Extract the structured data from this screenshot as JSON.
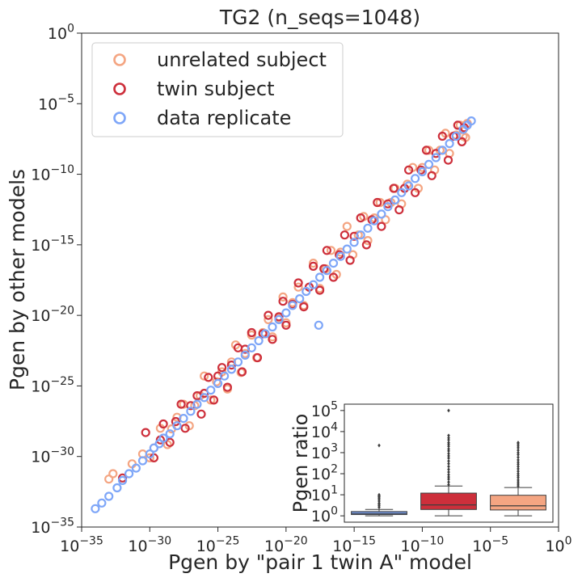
{
  "chart_data": [
    {
      "type": "scatter",
      "title": "TG2 (n_seqs=1048)",
      "xlabel": "Pgen by \"pair 1 twin A\" model",
      "ylabel": "Pgen by other models",
      "x_scale": "log",
      "y_scale": "log",
      "xlim": [
        1e-35,
        1
      ],
      "ylim": [
        1e-35,
        1
      ],
      "x_ticks": [
        {
          "value": 1e-35,
          "base": "10",
          "exp": "−35"
        },
        {
          "value": 1e-30,
          "base": "10",
          "exp": "−30"
        },
        {
          "value": 1e-25,
          "base": "10",
          "exp": "−25"
        },
        {
          "value": 1e-20,
          "base": "10",
          "exp": "−20"
        },
        {
          "value": 1e-15,
          "base": "10",
          "exp": "−15"
        },
        {
          "value": 1e-10,
          "base": "10",
          "exp": "−10"
        },
        {
          "value": 1e-05,
          "base": "10",
          "exp": "−5"
        },
        {
          "value": 1,
          "base": "10",
          "exp": "0"
        }
      ],
      "y_ticks": [
        {
          "value": 1e-35,
          "base": "10",
          "exp": "−35"
        },
        {
          "value": 1e-30,
          "base": "10",
          "exp": "−30"
        },
        {
          "value": 1e-25,
          "base": "10",
          "exp": "−25"
        },
        {
          "value": 1e-20,
          "base": "10",
          "exp": "−20"
        },
        {
          "value": 1e-15,
          "base": "10",
          "exp": "−15"
        },
        {
          "value": 1e-10,
          "base": "10",
          "exp": "−10"
        },
        {
          "value": 1e-05,
          "base": "10",
          "exp": "−5"
        },
        {
          "value": 1,
          "base": "10",
          "exp": "0"
        }
      ],
      "legend_position": "top-left",
      "marker": "hollow-circle",
      "series": [
        {
          "name": "unrelated subject",
          "color": "#f4a582",
          "points": [
            [
              1e-33,
              2.5e-32
            ],
            [
              2e-33,
              6e-32
            ],
            [
              5e-32,
              3e-31
            ],
            [
              3e-31,
              1.5e-30
            ],
            [
              1e-30,
              8e-31
            ],
            [
              2e-30,
              4e-30
            ],
            [
              6e-30,
              1e-28
            ],
            [
              2e-29,
              7e-30
            ],
            [
              4e-29,
              9e-29
            ],
            [
              1e-28,
              6e-28
            ],
            [
              3e-28,
              5e-27
            ],
            [
              8e-28,
              1.5e-28
            ],
            [
              2e-27,
              4e-27
            ],
            [
              5e-27,
              2e-26
            ],
            [
              1e-26,
              5e-25
            ],
            [
              3e-26,
              1e-26
            ],
            [
              8e-26,
              2e-25
            ],
            [
              2e-25,
              1e-24
            ],
            [
              5e-25,
              6e-26
            ],
            [
              1e-24,
              5e-24
            ],
            [
              2e-24,
              8e-23
            ],
            [
              5e-24,
              9e-25
            ],
            [
              1e-23,
              2e-23
            ],
            [
              3e-23,
              4e-22
            ],
            [
              7e-23,
              1e-23
            ],
            [
              2e-22,
              6e-22
            ],
            [
              5e-22,
              5e-21
            ],
            [
              1e-21,
              3e-22
            ],
            [
              3e-21,
              6e-21
            ],
            [
              6e-21,
              2e-19
            ],
            [
              1e-20,
              3e-21
            ],
            [
              3e-20,
              8e-20
            ],
            [
              8e-20,
              1e-18
            ],
            [
              2e-19,
              5e-20
            ],
            [
              5e-19,
              1e-18
            ],
            [
              1e-18,
              5e-17
            ],
            [
              3e-18,
              8e-19
            ],
            [
              8e-18,
              2e-17
            ],
            [
              2e-17,
              4e-16
            ],
            [
              5e-17,
              8e-18
            ],
            [
              1e-16,
              3e-16
            ],
            [
              3e-16,
              2e-14
            ],
            [
              8e-16,
              2e-16
            ],
            [
              2e-15,
              5e-15
            ],
            [
              5e-15,
              1e-13
            ],
            [
              1e-14,
              2e-15
            ],
            [
              3e-14,
              8e-14
            ],
            [
              8e-14,
              1e-12
            ],
            [
              2e-13,
              6e-14
            ],
            [
              5e-13,
              1e-12
            ],
            [
              1e-12,
              1e-11
            ],
            [
              3e-12,
              8e-13
            ],
            [
              8e-12,
              2e-11
            ],
            [
              2e-11,
              3e-10
            ],
            [
              5e-11,
              1e-11
            ],
            [
              1e-10,
              3e-10
            ],
            [
              3e-10,
              5e-09
            ],
            [
              8e-10,
              2e-10
            ],
            [
              2e-09,
              5e-09
            ],
            [
              5e-09,
              8e-08
            ],
            [
              1e-08,
              3e-09
            ],
            [
              3e-08,
              6e-08
            ],
            [
              6e-08,
              3e-07
            ],
            [
              1e-07,
              5e-08
            ],
            [
              2e-07,
              4e-07
            ],
            [
              1.5e-07,
              4e-08
            ]
          ]
        },
        {
          "name": "twin subject",
          "color": "#cd2f3b",
          "points": [
            [
              1e-32,
              3e-32
            ],
            [
              5e-31,
              5e-29
            ],
            [
              2e-30,
              8e-31
            ],
            [
              6e-30,
              1.5e-29
            ],
            [
              1e-29,
              2e-28
            ],
            [
              3e-29,
              1e-29
            ],
            [
              8e-29,
              3e-28
            ],
            [
              2e-28,
              5e-27
            ],
            [
              4e-28,
              1e-28
            ],
            [
              1e-27,
              4e-27
            ],
            [
              3e-27,
              2e-26
            ],
            [
              6e-27,
              1e-27
            ],
            [
              1e-26,
              3e-26
            ],
            [
              2e-26,
              4e-25
            ],
            [
              5e-26,
              1e-26
            ],
            [
              1e-25,
              5e-25
            ],
            [
              2e-25,
              2e-24
            ],
            [
              5e-25,
              8e-26
            ],
            [
              1e-24,
              3e-24
            ],
            [
              3e-24,
              5e-23
            ],
            [
              6e-24,
              1e-24
            ],
            [
              1e-23,
              4e-23
            ],
            [
              3e-23,
              6e-22
            ],
            [
              8e-23,
              1e-23
            ],
            [
              2e-22,
              5e-22
            ],
            [
              5e-22,
              1e-20
            ],
            [
              1e-21,
              2e-22
            ],
            [
              3e-21,
              8e-21
            ],
            [
              6e-21,
              1e-19
            ],
            [
              1e-20,
              2e-21
            ],
            [
              3e-20,
              6e-20
            ],
            [
              8e-20,
              2e-18
            ],
            [
              2e-19,
              4e-20
            ],
            [
              5e-19,
              1e-18
            ],
            [
              1e-18,
              3e-17
            ],
            [
              3e-18,
              6e-19
            ],
            [
              6e-18,
              2e-17
            ],
            [
              1e-17,
              4e-16
            ],
            [
              3e-17,
              5e-18
            ],
            [
              8e-17,
              2e-16
            ],
            [
              2e-16,
              5e-15
            ],
            [
              5e-16,
              8e-17
            ],
            [
              1e-15,
              4e-15
            ],
            [
              3e-15,
              8e-14
            ],
            [
              8e-15,
              1e-15
            ],
            [
              2e-14,
              6e-14
            ],
            [
              5e-14,
              1e-12
            ],
            [
              1e-13,
              2e-14
            ],
            [
              3e-13,
              8e-13
            ],
            [
              8e-13,
              1e-11
            ],
            [
              2e-12,
              3e-13
            ],
            [
              5e-12,
              1e-11
            ],
            [
              1e-11,
              2e-10
            ],
            [
              3e-11,
              5e-12
            ],
            [
              8e-11,
              2e-10
            ],
            [
              2e-10,
              5e-09
            ],
            [
              5e-10,
              8e-11
            ],
            [
              1e-09,
              3e-09
            ],
            [
              3e-09,
              5e-08
            ],
            [
              8e-09,
              1e-09
            ],
            [
              2e-08,
              5e-08
            ],
            [
              4e-08,
              3e-07
            ],
            [
              8e-08,
              2e-08
            ],
            [
              1.2e-07,
              2e-07
            ]
          ]
        },
        {
          "name": "data replicate",
          "color": "#7ea6f8",
          "points": [
            [
              1e-34,
              2e-34
            ],
            [
              3e-34,
              5e-34
            ],
            [
              1e-33,
              1.5e-33
            ],
            [
              4e-33,
              6e-33
            ],
            [
              1e-32,
              2e-32
            ],
            [
              3e-32,
              6e-32
            ],
            [
              1e-31,
              1.5e-31
            ],
            [
              3e-31,
              5e-31
            ],
            [
              1e-30,
              1.5e-30
            ],
            [
              2e-30,
              4e-30
            ],
            [
              5e-30,
              8e-30
            ],
            [
              1e-29,
              2e-29
            ],
            [
              3e-29,
              4e-29
            ],
            [
              1e-28,
              1.5e-28
            ],
            [
              3e-28,
              5e-28
            ],
            [
              1e-27,
              1.6e-27
            ],
            [
              3e-27,
              5e-27
            ],
            [
              1e-26,
              1.5e-26
            ],
            [
              3e-26,
              5e-26
            ],
            [
              1e-25,
              1.5e-25
            ],
            [
              3e-25,
              5e-25
            ],
            [
              1e-24,
              1.5e-24
            ],
            [
              3e-24,
              5e-24
            ],
            [
              1e-23,
              1.5e-23
            ],
            [
              3e-23,
              5e-23
            ],
            [
              1e-22,
              1.6e-22
            ],
            [
              3e-22,
              5e-22
            ],
            [
              1e-21,
              1.5e-21
            ],
            [
              3e-21,
              5e-21
            ],
            [
              1e-20,
              1.5e-20
            ],
            [
              3e-20,
              5e-20
            ],
            [
              1e-19,
              1.5e-19
            ],
            [
              3e-19,
              5e-19
            ],
            [
              1e-18,
              1.5e-18
            ],
            [
              3e-18,
              5e-18
            ],
            [
              1e-17,
              1.5e-17
            ],
            [
              3e-17,
              5e-17
            ],
            [
              1e-16,
              1.5e-16
            ],
            [
              3e-16,
              5e-16
            ],
            [
              1e-15,
              1.5e-15
            ],
            [
              3e-15,
              5e-15
            ],
            [
              1e-14,
              1.5e-14
            ],
            [
              3e-14,
              5e-14
            ],
            [
              1e-13,
              1.5e-13
            ],
            [
              3e-13,
              5e-13
            ],
            [
              1e-12,
              1.5e-12
            ],
            [
              3e-12,
              5e-12
            ],
            [
              1e-11,
              1.5e-11
            ],
            [
              3e-11,
              5e-11
            ],
            [
              1e-10,
              1.5e-10
            ],
            [
              3e-10,
              5e-10
            ],
            [
              1e-09,
              1.5e-09
            ],
            [
              3e-09,
              5e-09
            ],
            [
              1e-08,
              1.5e-08
            ],
            [
              3e-08,
              5e-08
            ],
            [
              1e-07,
              1.5e-07
            ],
            [
              2e-07,
              3e-07
            ],
            [
              4e-07,
              6e-07
            ],
            [
              2.5e-18,
              2e-21
            ]
          ]
        }
      ]
    },
    {
      "type": "box",
      "ylabel": "Pgen ratio",
      "y_scale": "log",
      "ylim": [
        0.5,
        200000
      ],
      "y_ticks": [
        {
          "value": 1,
          "base": "10",
          "exp": "0"
        },
        {
          "value": 10,
          "base": "10",
          "exp": "1"
        },
        {
          "value": 100,
          "base": "10",
          "exp": "2"
        },
        {
          "value": 1000,
          "base": "10",
          "exp": "3"
        },
        {
          "value": 10000,
          "base": "10",
          "exp": "4"
        },
        {
          "value": 100000,
          "base": "10",
          "exp": "5"
        }
      ],
      "boxes": [
        {
          "color": "#7ea6f8",
          "whisker_low": 1.0,
          "q1": 1.15,
          "median": 1.3,
          "q3": 1.6,
          "whisker_high": 2.0,
          "outliers": [
            2.5,
            3,
            3.5,
            4,
            5,
            6,
            7,
            8,
            9,
            10,
            2200
          ]
        },
        {
          "color": "#cd2f3b",
          "whisker_low": 1.0,
          "q1": 2.0,
          "median": 3.3,
          "q3": 12,
          "whisker_high": 26,
          "outliers": [
            30,
            40,
            55,
            70,
            90,
            120,
            160,
            220,
            300,
            400,
            550,
            700,
            900,
            1200,
            1500,
            2000,
            2500,
            3000,
            4000,
            5000,
            6500,
            100000
          ]
        },
        {
          "color": "#f4a582",
          "whisker_low": 1.0,
          "q1": 1.9,
          "median": 3.0,
          "q3": 9.5,
          "whisker_high": 22,
          "outliers": [
            26,
            32,
            40,
            50,
            65,
            80,
            100,
            130,
            170,
            220,
            280,
            350,
            450,
            600,
            800,
            1000,
            1300,
            1700,
            2100,
            2600,
            3000
          ]
        }
      ]
    }
  ]
}
